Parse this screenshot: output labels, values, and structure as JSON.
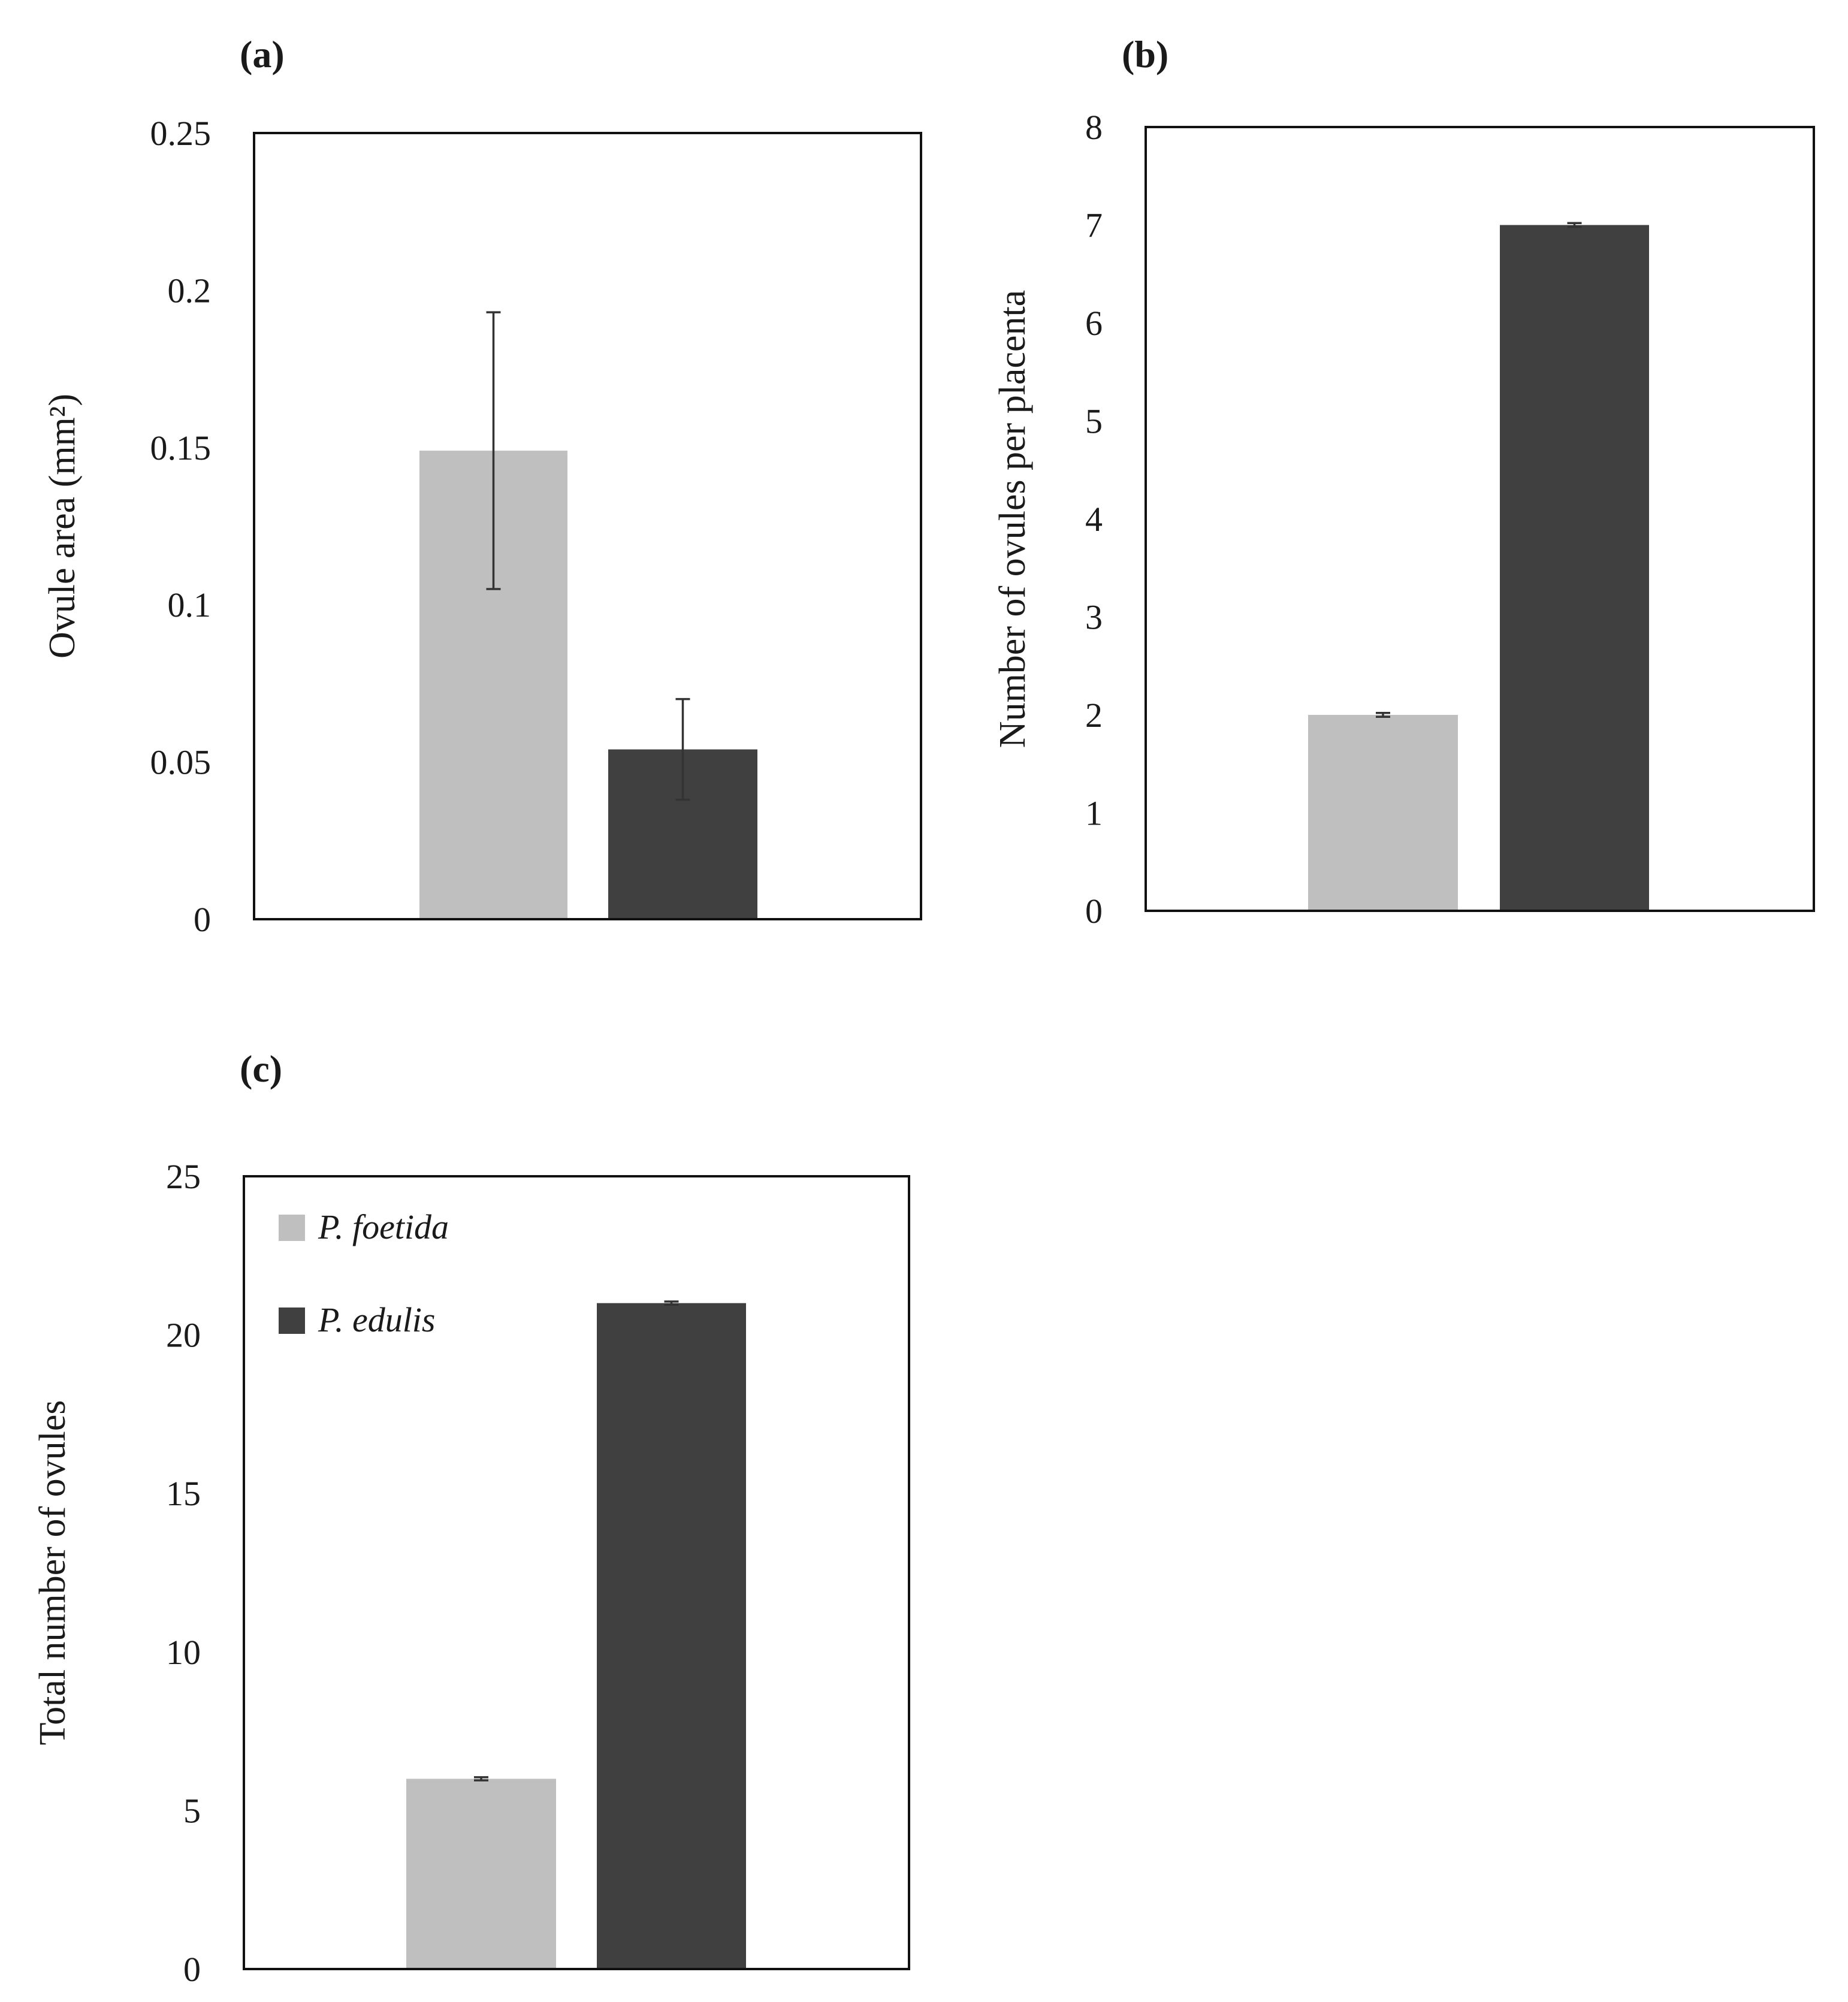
{
  "figure": {
    "legend": {
      "items": [
        {
          "label": "P. foetida",
          "color": "#bfbfbf"
        },
        {
          "label": "P. edulis",
          "color": "#404040"
        }
      ]
    }
  },
  "chart_data": [
    {
      "id": "a",
      "type": "bar",
      "panel_label": "(a)",
      "ylabel": "Ovule area (mm²)",
      "ylim": [
        0,
        0.25
      ],
      "yticks": [
        "0",
        "0.05",
        "0.1",
        "0.15",
        "0.2",
        "0.25"
      ],
      "ytick_values": [
        0,
        0.05,
        0.1,
        0.15,
        0.2,
        0.25
      ],
      "categories": [
        "P. foetida",
        "P. edulis"
      ],
      "values": [
        0.149,
        0.054
      ],
      "errors": [
        0.044,
        0.016
      ],
      "colors": [
        "#bfbfbf",
        "#404040"
      ],
      "legend": false
    },
    {
      "id": "b",
      "type": "bar",
      "panel_label": "(b)",
      "ylabel": "Number of ovules per placenta",
      "ylim": [
        0,
        8
      ],
      "yticks": [
        "0",
        "1",
        "2",
        "3",
        "4",
        "5",
        "6",
        "7",
        "8"
      ],
      "ytick_values": [
        0,
        1,
        2,
        3,
        4,
        5,
        6,
        7,
        8
      ],
      "categories": [
        "P. foetida",
        "P. edulis"
      ],
      "values": [
        2,
        7
      ],
      "errors": [
        0.02,
        0.02
      ],
      "colors": [
        "#bfbfbf",
        "#404040"
      ],
      "legend": false
    },
    {
      "id": "c",
      "type": "bar",
      "panel_label": "(c)",
      "ylabel": "Total number of ovules",
      "ylim": [
        0,
        25
      ],
      "yticks": [
        "0",
        "5",
        "10",
        "15",
        "20",
        "25"
      ],
      "ytick_values": [
        0,
        5,
        10,
        15,
        20,
        25
      ],
      "categories": [
        "P. foetida",
        "P. edulis"
      ],
      "values": [
        6,
        21
      ],
      "errors": [
        0.05,
        0.05
      ],
      "colors": [
        "#bfbfbf",
        "#404040"
      ],
      "legend": true,
      "legend_position": "top-left"
    }
  ]
}
